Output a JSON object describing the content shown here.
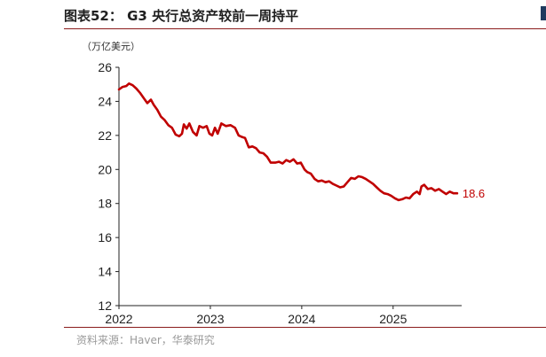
{
  "header": {
    "title": "图表52：  G3 央行总资产较前一周持平",
    "unit_label": "（万亿美元）"
  },
  "footer": {
    "source": "资料来源：Haver，华泰研究"
  },
  "colors": {
    "line": "#c00000",
    "accent_rule": "#8a1c1c",
    "axis": "#222222"
  },
  "chart_data": {
    "type": "line",
    "title": "G3 央行总资产较前一周持平",
    "ylabel": "（万亿美元）",
    "xlabel": "",
    "ylim": [
      12,
      26
    ],
    "y_ticks": [
      12,
      14,
      16,
      18,
      20,
      22,
      24,
      26
    ],
    "xlim": [
      2022.0,
      2025.75
    ],
    "x_ticks": [
      2022,
      2023,
      2024,
      2025
    ],
    "grid": false,
    "end_label": "18.6",
    "series": [
      {
        "points": [
          [
            2022.0,
            24.7
          ],
          [
            2022.04,
            24.85
          ],
          [
            2022.08,
            24.9
          ],
          [
            2022.11,
            25.05
          ],
          [
            2022.15,
            24.95
          ],
          [
            2022.19,
            24.75
          ],
          [
            2022.23,
            24.5
          ],
          [
            2022.27,
            24.2
          ],
          [
            2022.31,
            23.9
          ],
          [
            2022.35,
            24.1
          ],
          [
            2022.38,
            23.8
          ],
          [
            2022.42,
            23.5
          ],
          [
            2022.46,
            23.1
          ],
          [
            2022.5,
            22.9
          ],
          [
            2022.54,
            22.6
          ],
          [
            2022.58,
            22.45
          ],
          [
            2022.62,
            22.05
          ],
          [
            2022.66,
            21.95
          ],
          [
            2022.69,
            22.1
          ],
          [
            2022.71,
            22.65
          ],
          [
            2022.74,
            22.4
          ],
          [
            2022.77,
            22.7
          ],
          [
            2022.81,
            22.2
          ],
          [
            2022.85,
            22.0
          ],
          [
            2022.88,
            22.55
          ],
          [
            2022.92,
            22.45
          ],
          [
            2022.96,
            22.55
          ],
          [
            2022.99,
            22.1
          ],
          [
            2023.02,
            22.0
          ],
          [
            2023.05,
            22.45
          ],
          [
            2023.08,
            22.1
          ],
          [
            2023.12,
            22.7
          ],
          [
            2023.17,
            22.55
          ],
          [
            2023.22,
            22.6
          ],
          [
            2023.27,
            22.45
          ],
          [
            2023.31,
            22.0
          ],
          [
            2023.35,
            21.9
          ],
          [
            2023.38,
            21.85
          ],
          [
            2023.42,
            21.3
          ],
          [
            2023.46,
            21.35
          ],
          [
            2023.5,
            21.25
          ],
          [
            2023.54,
            21.0
          ],
          [
            2023.58,
            20.95
          ],
          [
            2023.62,
            20.75
          ],
          [
            2023.66,
            20.4
          ],
          [
            2023.71,
            20.4
          ],
          [
            2023.75,
            20.45
          ],
          [
            2023.79,
            20.35
          ],
          [
            2023.83,
            20.55
          ],
          [
            2023.87,
            20.45
          ],
          [
            2023.91,
            20.6
          ],
          [
            2023.95,
            20.35
          ],
          [
            2023.99,
            20.4
          ],
          [
            2024.03,
            20.0
          ],
          [
            2024.06,
            19.85
          ],
          [
            2024.1,
            19.75
          ],
          [
            2024.14,
            19.45
          ],
          [
            2024.18,
            19.3
          ],
          [
            2024.22,
            19.35
          ],
          [
            2024.26,
            19.25
          ],
          [
            2024.3,
            19.3
          ],
          [
            2024.34,
            19.15
          ],
          [
            2024.38,
            19.05
          ],
          [
            2024.42,
            18.95
          ],
          [
            2024.46,
            19.0
          ],
          [
            2024.5,
            19.25
          ],
          [
            2024.54,
            19.5
          ],
          [
            2024.58,
            19.45
          ],
          [
            2024.62,
            19.6
          ],
          [
            2024.66,
            19.55
          ],
          [
            2024.7,
            19.45
          ],
          [
            2024.74,
            19.3
          ],
          [
            2024.78,
            19.15
          ],
          [
            2024.82,
            18.95
          ],
          [
            2024.86,
            18.75
          ],
          [
            2024.9,
            18.6
          ],
          [
            2024.94,
            18.55
          ],
          [
            2024.98,
            18.45
          ],
          [
            2025.02,
            18.3
          ],
          [
            2025.06,
            18.2
          ],
          [
            2025.1,
            18.25
          ],
          [
            2025.14,
            18.35
          ],
          [
            2025.18,
            18.3
          ],
          [
            2025.22,
            18.55
          ],
          [
            2025.26,
            18.7
          ],
          [
            2025.29,
            18.55
          ],
          [
            2025.31,
            19.0
          ],
          [
            2025.34,
            19.1
          ],
          [
            2025.38,
            18.85
          ],
          [
            2025.42,
            18.9
          ],
          [
            2025.46,
            18.75
          ],
          [
            2025.5,
            18.85
          ],
          [
            2025.54,
            18.7
          ],
          [
            2025.58,
            18.55
          ],
          [
            2025.62,
            18.7
          ],
          [
            2025.66,
            18.6
          ],
          [
            2025.7,
            18.6
          ]
        ]
      }
    ]
  }
}
